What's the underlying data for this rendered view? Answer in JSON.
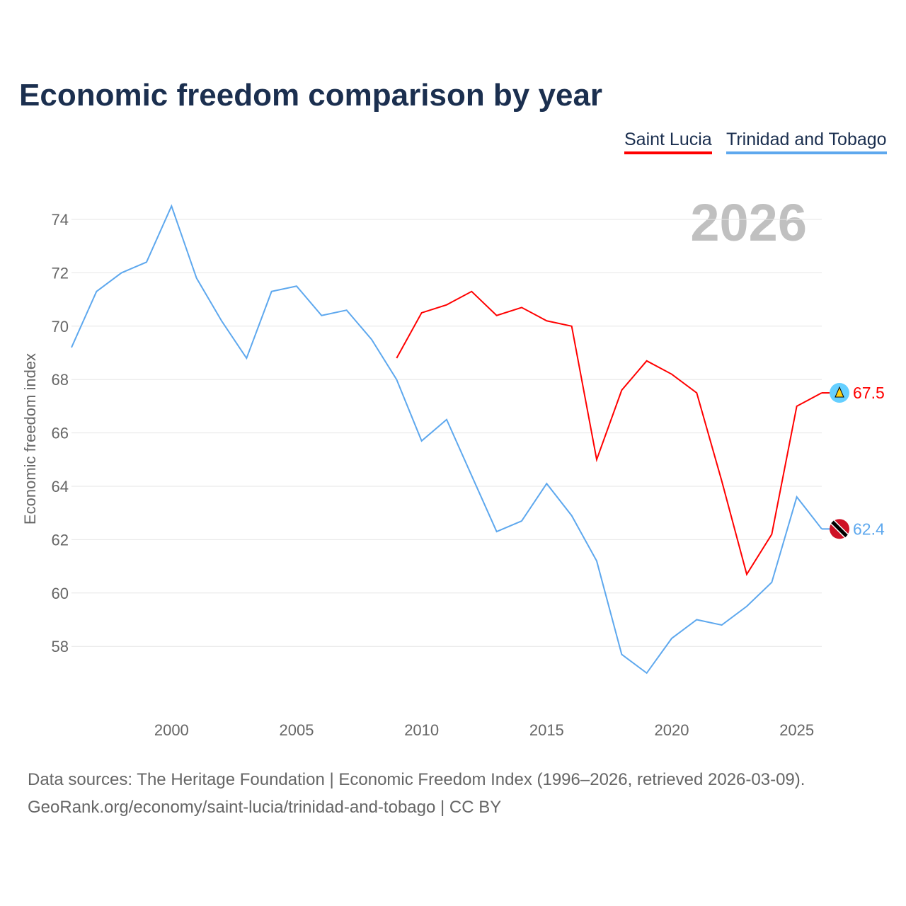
{
  "chart_data": {
    "type": "line",
    "title": "Economic freedom comparison by year",
    "ylabel": "Economic freedom index",
    "xlabel": "",
    "year_label": "2026",
    "xlim": [
      1996,
      2026
    ],
    "ylim": [
      56,
      75.5
    ],
    "yticks": [
      58,
      60,
      62,
      64,
      66,
      68,
      70,
      72,
      74
    ],
    "xticks": [
      2000,
      2005,
      2010,
      2015,
      2020,
      2025
    ],
    "grid": true,
    "legend_placement": "top-right",
    "series": [
      {
        "name": "Saint Lucia",
        "color": "#ff0000",
        "end_label": "67.5",
        "x": [
          2009,
          2010,
          2011,
          2012,
          2013,
          2014,
          2015,
          2016,
          2017,
          2018,
          2019,
          2020,
          2021,
          2022,
          2023,
          2024,
          2025,
          2026
        ],
        "values": [
          68.8,
          70.5,
          70.8,
          71.3,
          70.4,
          70.7,
          70.2,
          70.0,
          65.0,
          67.6,
          68.7,
          68.2,
          67.5,
          64.2,
          60.7,
          62.2,
          67.0,
          67.5
        ]
      },
      {
        "name": "Trinidad and Tobago",
        "color": "#5ea8ee",
        "end_label": "62.4",
        "x": [
          1996,
          1997,
          1998,
          1999,
          2000,
          2001,
          2002,
          2003,
          2004,
          2005,
          2006,
          2007,
          2008,
          2009,
          2010,
          2011,
          2012,
          2013,
          2014,
          2015,
          2016,
          2017,
          2018,
          2019,
          2020,
          2021,
          2022,
          2023,
          2024,
          2025,
          2026
        ],
        "values": [
          69.2,
          71.3,
          72.0,
          72.4,
          74.5,
          71.8,
          70.2,
          68.8,
          71.3,
          71.5,
          70.4,
          70.6,
          69.5,
          68.0,
          65.7,
          66.5,
          64.4,
          62.3,
          62.7,
          64.1,
          62.9,
          61.2,
          57.7,
          57.0,
          58.3,
          59.0,
          58.8,
          59.5,
          60.4,
          63.6,
          62.4
        ]
      }
    ]
  },
  "footer": {
    "line1": "Data sources: The Heritage Foundation | Economic Freedom Index (1996–2026, retrieved 2026-03-09).",
    "line2": "GeoRank.org/economy/saint-lucia/trinidad-and-tobago | CC BY"
  }
}
